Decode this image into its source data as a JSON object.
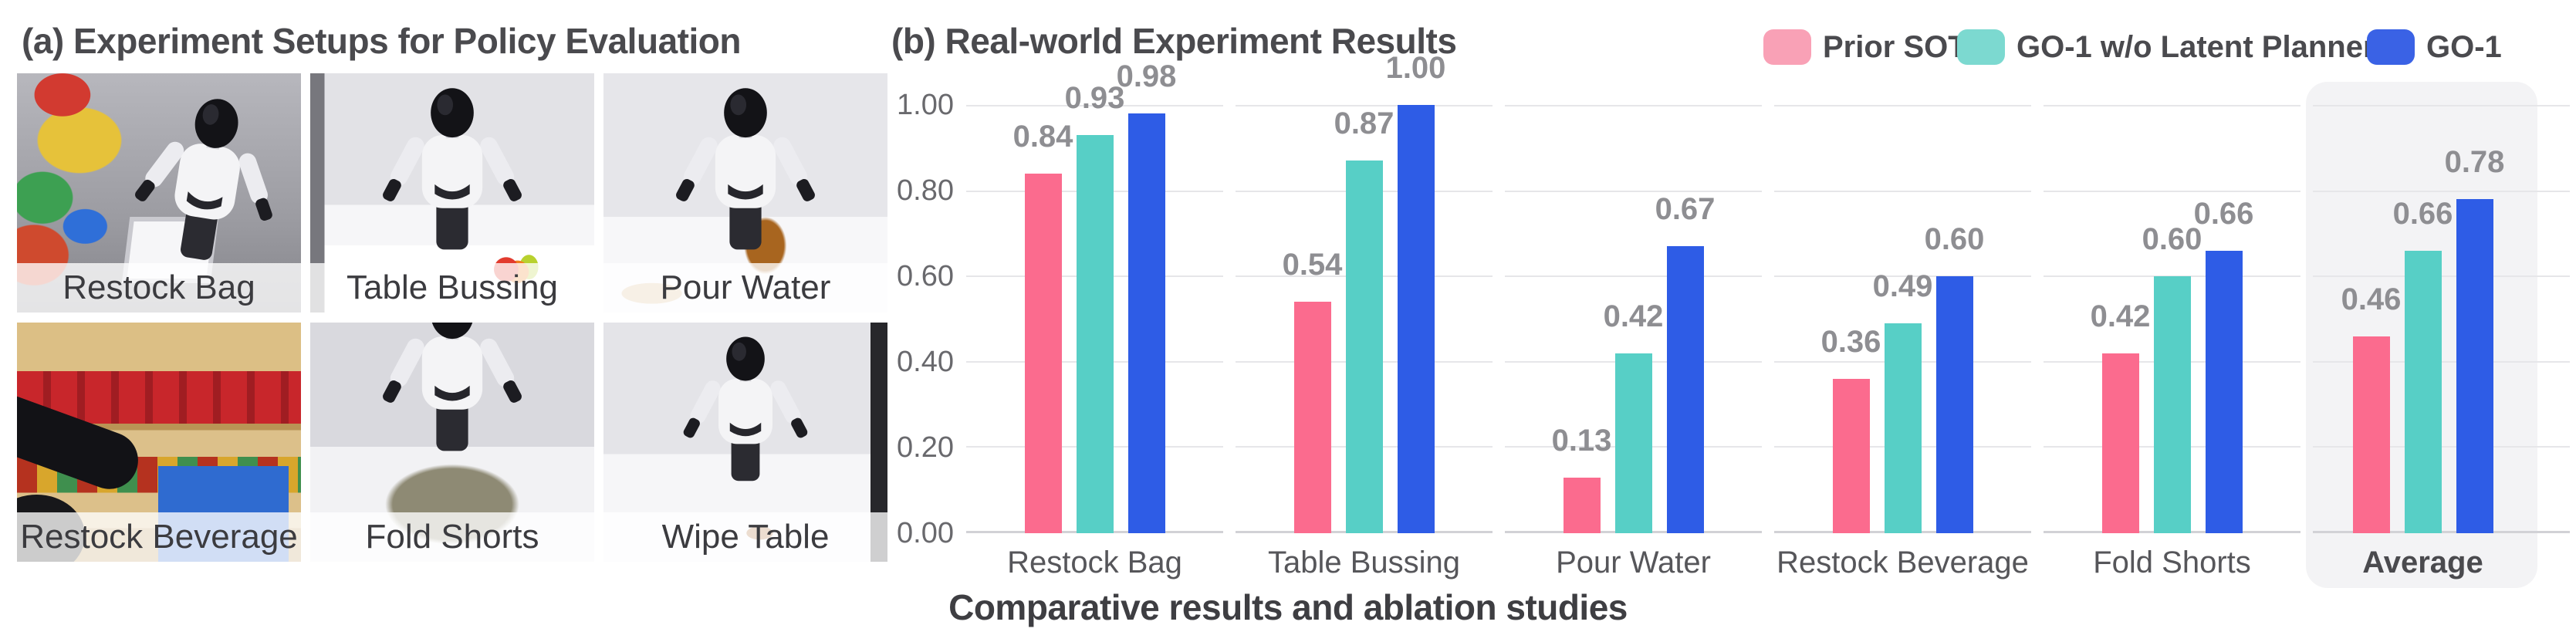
{
  "left_panel": {
    "title": "(a) Experiment Setups for Policy Evaluation",
    "photos": [
      {
        "label": "Restock Bag"
      },
      {
        "label": "Table Bussing"
      },
      {
        "label": "Pour Water"
      },
      {
        "label": "Restock Beverage"
      },
      {
        "label": "Fold Shorts"
      },
      {
        "label": "Wipe Table"
      }
    ]
  },
  "right_panel": {
    "title": "(b) Real-world Experiment Results",
    "caption": "Comparative results and ablation studies",
    "legend": [
      {
        "label": "Prior SOTA",
        "swatch_color": "#F9A1B6"
      },
      {
        "label": "GO-1 w/o Latent Planner",
        "swatch_color": "#7CD9D0"
      },
      {
        "label": "GO-1",
        "swatch_color": "#3A62E5"
      }
    ]
  },
  "chart_data": {
    "type": "bar",
    "title": "(b) Real-world Experiment Results",
    "categories": [
      "Restock Bag",
      "Table Bussing",
      "Pour Water",
      "Restock Beverage",
      "Fold Shorts",
      "Average"
    ],
    "series": [
      {
        "name": "Prior SOTA",
        "color": "#FB6B8E",
        "values": [
          0.84,
          0.54,
          0.13,
          0.36,
          0.42,
          0.46
        ]
      },
      {
        "name": "GO-1 w/o Latent Planner",
        "color": "#57CFC6",
        "values": [
          0.93,
          0.87,
          0.42,
          0.49,
          0.6,
          0.66
        ]
      },
      {
        "name": "GO-1",
        "color": "#2E5CE6",
        "values": [
          0.98,
          1.0,
          0.67,
          0.6,
          0.66,
          0.78
        ]
      }
    ],
    "ylim": [
      0,
      1.0
    ],
    "yticks_top_to_bottom": [
      "1.00",
      "0.80",
      "0.60",
      "0.40",
      "0.20",
      "0.00"
    ],
    "grid": "horizontal",
    "legend_position": "top-right",
    "highlighted_category": "Average",
    "value_label_decimals": 2
  }
}
